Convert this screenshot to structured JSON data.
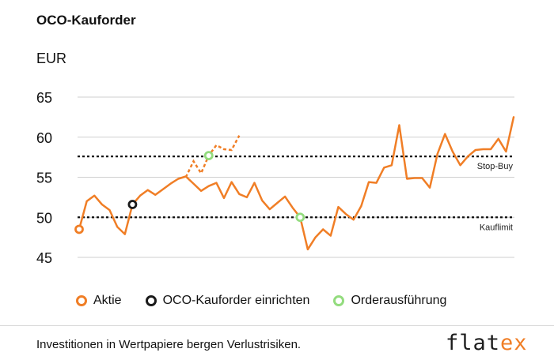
{
  "title": "OCO-Kauforder",
  "unit": "EUR",
  "legend": {
    "items": [
      {
        "label": "Aktie",
        "color": "#f07e26"
      },
      {
        "label": "OCO-Kauforder einrichten",
        "color": "#1a1a1a"
      },
      {
        "label": "Orderausführung",
        "color": "#93dc7e"
      }
    ]
  },
  "footer": {
    "disclaimer": "Investitionen in Wertpapiere bergen Verlustrisiken.",
    "logo_main": "flat",
    "logo_accent": "ex"
  },
  "chart_data": {
    "type": "line",
    "ylim": [
      45,
      65
    ],
    "yticks": [
      "45",
      "50",
      "55",
      "60",
      "65"
    ],
    "grid": true,
    "series": [
      {
        "name": "Aktie",
        "color": "#f07e26",
        "style": "solid",
        "values": [
          48.5,
          52.0,
          52.7,
          51.6,
          50.9,
          48.8,
          47.9,
          51.6,
          52.7,
          53.4,
          52.8,
          53.5,
          54.2,
          54.8,
          55.1,
          54.2,
          53.3,
          53.9,
          54.3,
          52.4,
          54.4,
          52.9,
          52.5,
          54.3,
          52.1,
          51.0,
          51.8,
          52.6,
          51.2,
          50.0,
          46.0,
          47.5,
          48.5,
          47.7,
          51.3,
          50.4,
          49.7,
          51.4,
          54.4,
          54.3,
          56.2,
          56.5,
          61.5,
          54.8,
          54.9,
          54.9,
          53.7,
          57.9,
          60.4,
          58.2,
          56.5,
          57.6,
          58.4,
          58.5,
          58.5,
          59.8,
          58.2,
          62.5
        ]
      },
      {
        "name": "",
        "color": "#f07e26",
        "style": "dotted",
        "values": [
          55.0,
          57.0,
          55.5,
          57.7,
          59.0,
          58.5,
          58.4,
          60.2
        ]
      }
    ],
    "reference_lines": [
      {
        "label": "Stop-Buy",
        "y": 57.6
      },
      {
        "label": "Kauflimit",
        "y": 50.0
      }
    ],
    "markers": [
      {
        "series": "Aktie",
        "point_index": 0,
        "y": 48.5,
        "color": "#f07e26"
      },
      {
        "series": "Aktie",
        "point_index": 7,
        "y": 51.6,
        "color": "#1a1a1a"
      },
      {
        "series": "",
        "point_index": 3,
        "y": 57.7,
        "color": "#93dc7e"
      },
      {
        "series": "Aktie",
        "point_index": 29,
        "y": 50.0,
        "color": "#93dc7e"
      }
    ]
  }
}
